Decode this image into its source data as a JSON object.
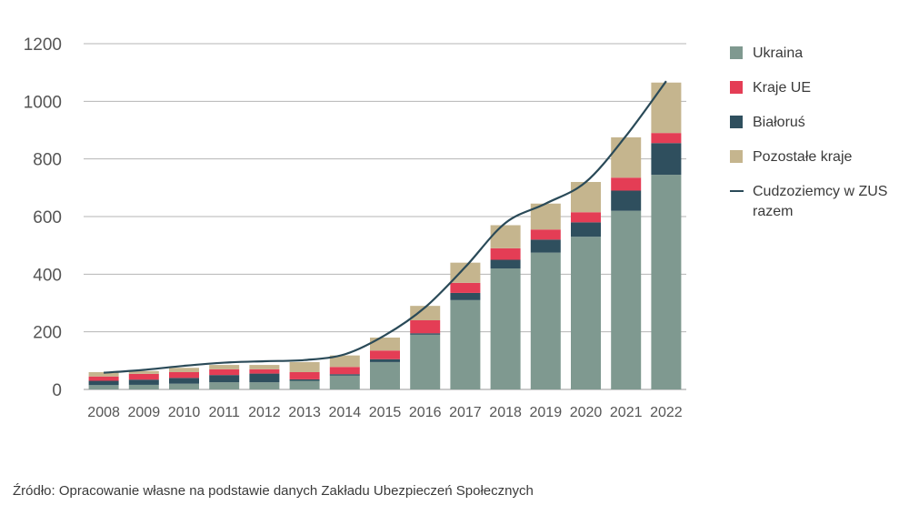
{
  "chart_data": {
    "type": "bar",
    "stacked": true,
    "categories": [
      "2008",
      "2009",
      "2010",
      "2011",
      "2012",
      "2013",
      "2014",
      "2015",
      "2016",
      "2017",
      "2018",
      "2019",
      "2020",
      "2021",
      "2022"
    ],
    "series": [
      {
        "name": "Ukraina",
        "color": "#7f9990",
        "values": [
          15,
          16,
          20,
          25,
          25,
          30,
          48,
          95,
          190,
          310,
          420,
          475,
          530,
          620,
          745
        ]
      },
      {
        "name": "Białoruś",
        "color": "#2f4f5e",
        "values": [
          15,
          18,
          20,
          25,
          30,
          5,
          5,
          10,
          5,
          25,
          30,
          45,
          50,
          70,
          110
        ]
      },
      {
        "name": "Kraje UE",
        "color": "#e43d55",
        "values": [
          15,
          20,
          20,
          20,
          15,
          25,
          25,
          30,
          45,
          35,
          40,
          35,
          35,
          45,
          35
        ]
      },
      {
        "name": "Pozostałe kraje",
        "color": "#c5b58e",
        "values": [
          15,
          10,
          15,
          15,
          15,
          35,
          40,
          45,
          50,
          70,
          80,
          90,
          105,
          140,
          175
        ]
      }
    ],
    "line_series": {
      "name": "Cudzoziemcy w ZUS razem",
      "color": "#2a4a58",
      "values": [
        58,
        68,
        82,
        93,
        98,
        102,
        122,
        188,
        285,
        425,
        578,
        645,
        720,
        880,
        1070
      ]
    },
    "ylim": [
      0,
      1200
    ],
    "yticks": [
      0,
      200,
      400,
      600,
      800,
      1000,
      1200
    ],
    "grid": true,
    "legend_position": "right",
    "title": "",
    "xlabel": "",
    "ylabel": ""
  },
  "legend": {
    "items": [
      {
        "label": "Ukraina",
        "color": "#7f9990"
      },
      {
        "label": "Kraje UE",
        "color": "#e43d55"
      },
      {
        "label": "Białoruś",
        "color": "#2f4f5e"
      },
      {
        "label": "Pozostałe kraje",
        "color": "#c5b58e"
      }
    ],
    "line_label_1": "Cudzoziemcy w ZUS",
    "line_label_2": "razem",
    "line_color": "#2a4a58"
  },
  "source": "Źródło: Opracowanie własne na podstawie danych Zakładu Ubezpieczeń Społecznych"
}
